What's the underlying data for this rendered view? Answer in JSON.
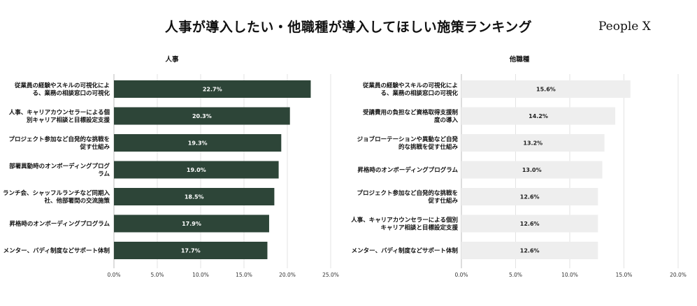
{
  "title": "人事が導入したい・他職種が導入してほしい施策ランキング",
  "brand": "People X",
  "colors": {
    "left_bar": "#2d4538",
    "right_bar": "#eeeeee",
    "left_value_text": "#ffffff",
    "right_value_text": "#222222"
  },
  "chart_data": [
    {
      "type": "bar",
      "orientation": "horizontal",
      "subtitle": "人事",
      "categories": [
        [
          "従業員の経験やスキルの可視化によ",
          "る、業務の相談窓口の可視化"
        ],
        [
          "人事、キャリアカウンセラーによる個",
          "別キャリア相談と目標設定支援"
        ],
        [
          "プロジェクト参加など自発的な挑戦を",
          "促す仕組み"
        ],
        [
          "部署異動時のオンボーディングプログ",
          "ラム"
        ],
        [
          "ランチ会、シャッフルランチなど同期入",
          "社、他部署間の交流施策"
        ],
        [
          "昇格時のオンボーディングプログラム"
        ],
        [
          "メンター、バディ制度などサポート体制"
        ]
      ],
      "values": [
        22.7,
        20.3,
        19.3,
        19.0,
        18.5,
        17.9,
        17.7
      ],
      "value_labels": [
        "22.7%",
        "20.3%",
        "19.3%",
        "19.0%",
        "18.5%",
        "17.9%",
        "17.7%"
      ],
      "xlim": [
        0,
        25
      ],
      "xticks": [
        "0.0%",
        "5.0%",
        "10.0%",
        "15.0%",
        "20.0%",
        "25.0%"
      ]
    },
    {
      "type": "bar",
      "orientation": "horizontal",
      "subtitle": "他職種",
      "categories": [
        [
          "従業員の経験やスキルの可視化によ",
          "る、業務の相談窓口の可視化"
        ],
        [
          "受講費用の負担など資格取得支援制",
          "度の導入"
        ],
        [
          "ジョブローテーションや異動など自発",
          "的な挑戦を促す仕組み"
        ],
        [
          "昇格時のオンボーディングプログラム"
        ],
        [
          "プロジェクト参加など自発的な挑戦を",
          "促す仕組み"
        ],
        [
          "人事、キャリアカウンセラーによる個別",
          "キャリア相談と目標設定支援"
        ],
        [
          "メンター、バディ制度などサポート体制"
        ]
      ],
      "values": [
        15.6,
        14.2,
        13.2,
        13.0,
        12.6,
        12.6,
        12.6
      ],
      "value_labels": [
        "15.6%",
        "14.2%",
        "13.2%",
        "13.0%",
        "12.6%",
        "12.6%",
        "12.6%"
      ],
      "xlim": [
        0,
        20
      ],
      "xticks": [
        "0.0%",
        "5.0%",
        "10.0%",
        "15.0%",
        "20.0%"
      ]
    }
  ]
}
